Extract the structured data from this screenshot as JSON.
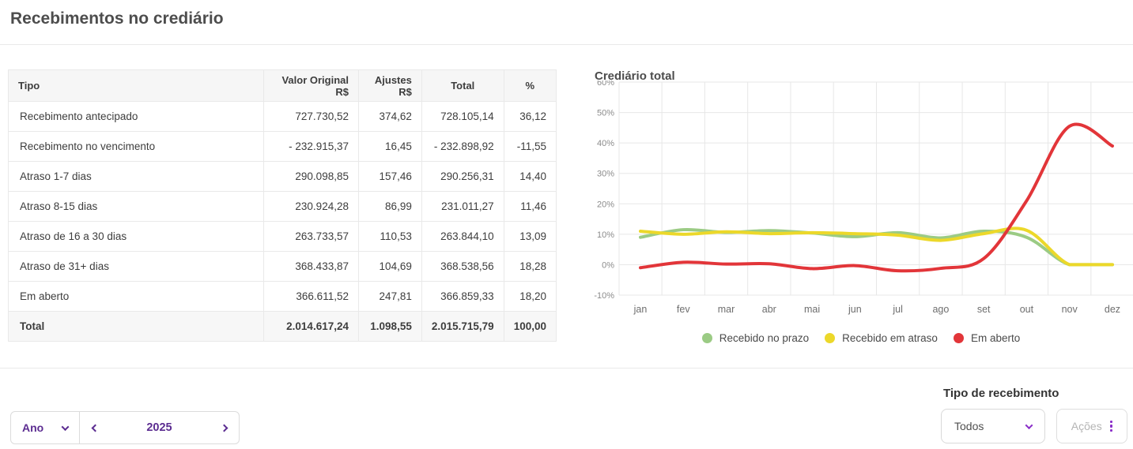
{
  "page": {
    "title": "Recebimentos no crediário"
  },
  "table": {
    "columns": [
      {
        "label": "Tipo",
        "align": "left"
      },
      {
        "label": "Valor Original R$",
        "align": "right"
      },
      {
        "label": "Ajustes R$",
        "align": "right"
      },
      {
        "label": "Total",
        "align": "center"
      },
      {
        "label": "%",
        "align": "center"
      }
    ],
    "rows": [
      [
        "Recebimento antecipado",
        "727.730,52",
        "374,62",
        "728.105,14",
        "36,12"
      ],
      [
        "Recebimento no vencimento",
        "- 232.915,37",
        "16,45",
        "- 232.898,92",
        "-11,55"
      ],
      [
        "Atraso 1-7 dias",
        "290.098,85",
        "157,46",
        "290.256,31",
        "14,40"
      ],
      [
        "Atraso 8-15 dias",
        "230.924,28",
        "86,99",
        "231.011,27",
        "11,46"
      ],
      [
        "Atraso de 16 a 30 dias",
        "263.733,57",
        "110,53",
        "263.844,10",
        "13,09"
      ],
      [
        "Atraso de 31+ dias",
        "368.433,87",
        "104,69",
        "368.538,56",
        "18,28"
      ],
      [
        "Em aberto",
        "366.611,52",
        "247,81",
        "366.859,33",
        "18,20"
      ]
    ],
    "total_row": [
      "Total",
      "2.014.617,24",
      "1.098,55",
      "2.015.715,79",
      "100,00"
    ]
  },
  "chart_data": {
    "type": "line",
    "title": "Crediário total",
    "categories": [
      "jan",
      "fev",
      "mar",
      "abr",
      "mai",
      "jun",
      "jul",
      "ago",
      "set",
      "out",
      "nov",
      "dez"
    ],
    "series": [
      {
        "name": "Recebido no prazo",
        "color": "#9bcb84",
        "values": [
          9,
          11.5,
          10.6,
          11.2,
          10.4,
          9.2,
          10.5,
          8.8,
          11,
          9,
          0,
          0
        ]
      },
      {
        "name": "Recebido em atraso",
        "color": "#ecd82a",
        "values": [
          11,
          10,
          10.8,
          10.2,
          10.5,
          10.2,
          9.7,
          8,
          10.2,
          11.3,
          0,
          0
        ]
      },
      {
        "name": "Em aberto",
        "color": "#e23539",
        "values": [
          -1,
          0.8,
          0.2,
          0.3,
          -1.3,
          -0.3,
          -2,
          -1.2,
          2,
          21,
          45.5,
          39
        ]
      }
    ],
    "ylim": [
      -10,
      60
    ],
    "ytick_step": 10,
    "ytick_suffix": "%",
    "grid": true,
    "legend_position": "bottom"
  },
  "filters": {
    "period_type": {
      "value": "Ano"
    },
    "year_nav": {
      "value": "2025"
    },
    "receipt_type": {
      "label": "Tipo de recebimento",
      "value": "Todos"
    },
    "actions_label": "Ações"
  },
  "colors": {
    "accent_purple": "#5c2d91",
    "icon_purple": "#8b2fc9",
    "grid_gray": "#e7e7e7",
    "axis_text": "#8b8b8b"
  }
}
